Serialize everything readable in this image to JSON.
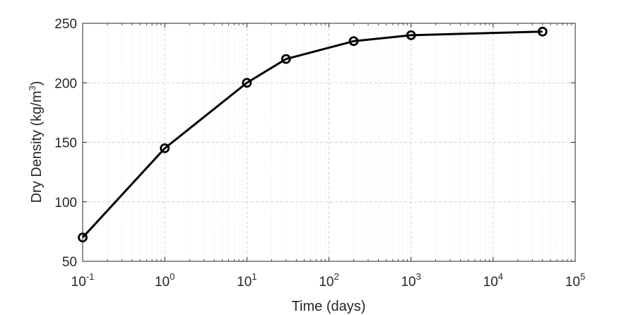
{
  "chart_data": {
    "type": "line",
    "title": "",
    "xlabel": "Time (days)",
    "ylabel": {
      "prefix": "Dry Density (kg/m",
      "superscript": "3",
      "suffix": ")"
    },
    "xscale": "log",
    "xlim": [
      0.1,
      100000
    ],
    "ylim": [
      50,
      250
    ],
    "grid": true,
    "x_ticks": [
      {
        "base": "10",
        "exp": "-1",
        "value": 0.1
      },
      {
        "base": "10",
        "exp": "0",
        "value": 1
      },
      {
        "base": "10",
        "exp": "1",
        "value": 10
      },
      {
        "base": "10",
        "exp": "2",
        "value": 100
      },
      {
        "base": "10",
        "exp": "3",
        "value": 1000
      },
      {
        "base": "10",
        "exp": "4",
        "value": 10000
      },
      {
        "base": "10",
        "exp": "5",
        "value": 100000
      }
    ],
    "y_ticks": [
      {
        "label": "50",
        "value": 50
      },
      {
        "label": "100",
        "value": 100
      },
      {
        "label": "150",
        "value": 150
      },
      {
        "label": "200",
        "value": 200
      },
      {
        "label": "250",
        "value": 250
      }
    ],
    "series": [
      {
        "color": "#000000",
        "marker": "circle",
        "x": [
          0.1,
          1,
          10,
          30,
          200,
          1000,
          40000
        ],
        "y": [
          70,
          145,
          200,
          220,
          235,
          240,
          243
        ]
      }
    ]
  }
}
